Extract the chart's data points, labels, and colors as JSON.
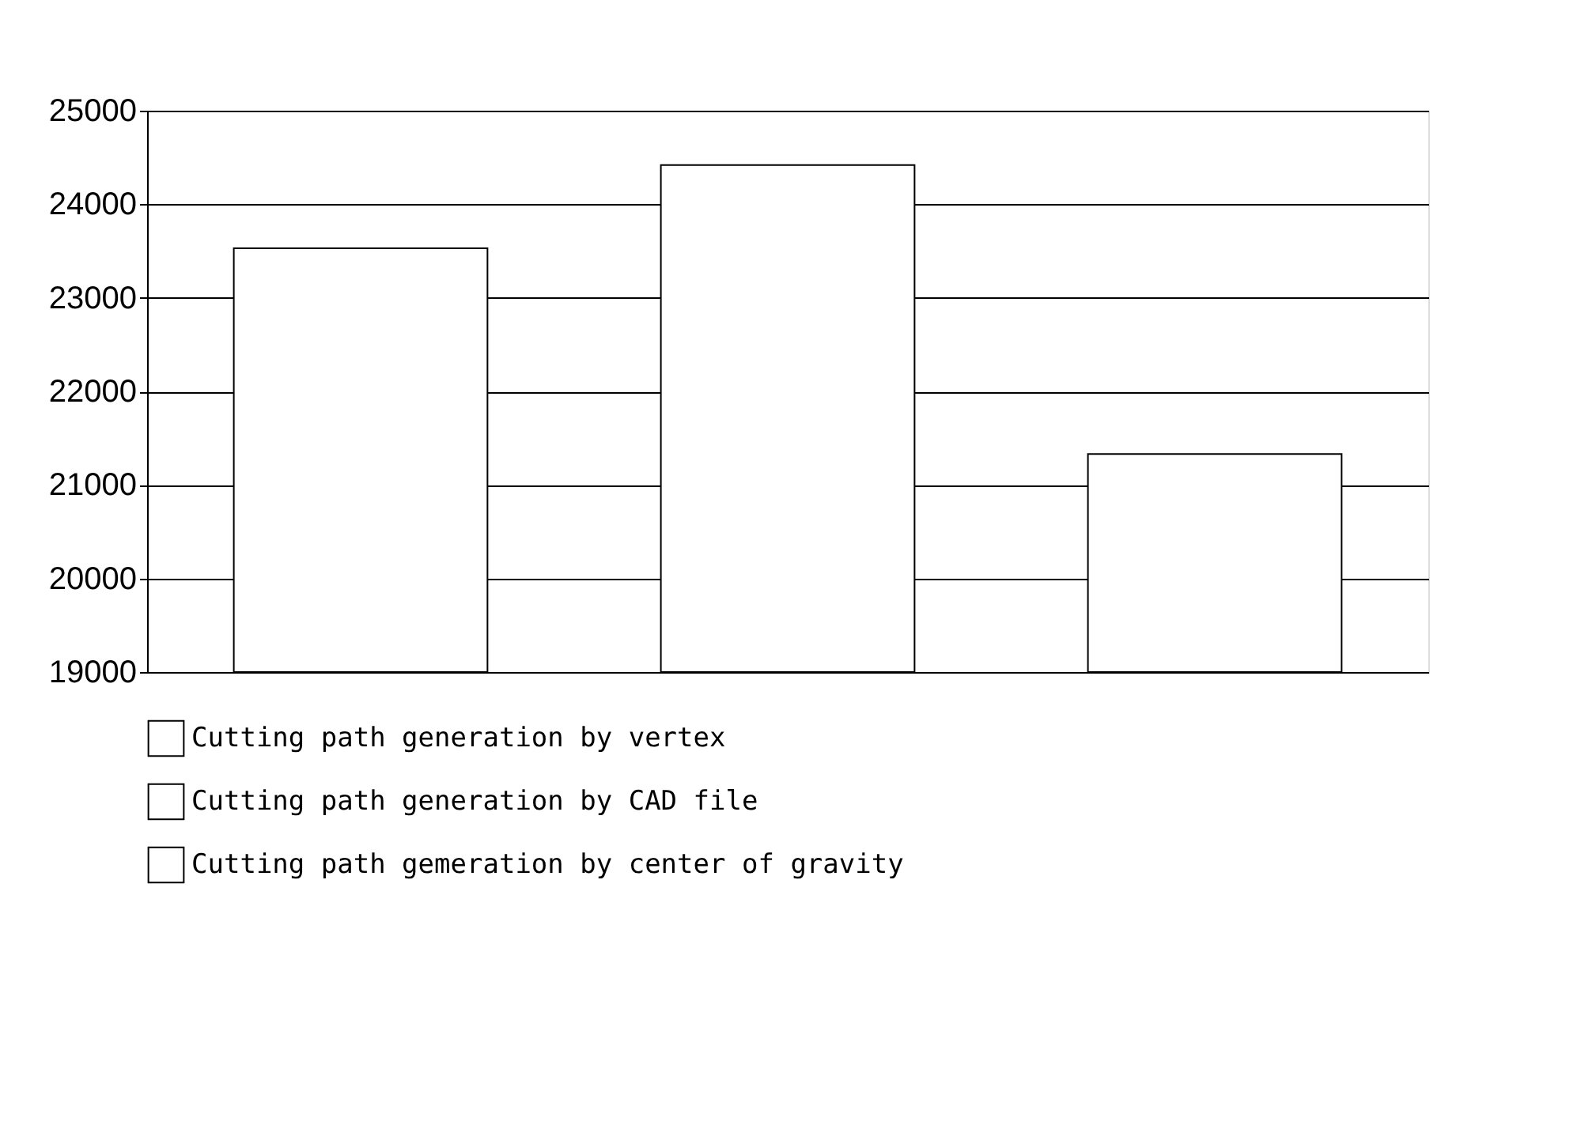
{
  "chart_data": {
    "type": "bar",
    "categories": [
      null,
      null,
      null
    ],
    "series": [
      {
        "name": "Cutting path generation by vertex",
        "color": "#ffffff",
        "values": [
          23530,
          null,
          null
        ]
      },
      {
        "name": "Cutting path generation by CAD file",
        "color": "#ffffff",
        "values": [
          null,
          24420,
          null
        ]
      },
      {
        "name": "Cutting path gemeration by center of gravity",
        "color": "#ffffff",
        "values": [
          null,
          null,
          21330
        ]
      }
    ],
    "ylim": [
      19000,
      25000
    ],
    "yticks": [
      19000,
      20000,
      21000,
      22000,
      23000,
      24000,
      25000
    ],
    "grid": "y",
    "legend": "bottom"
  }
}
